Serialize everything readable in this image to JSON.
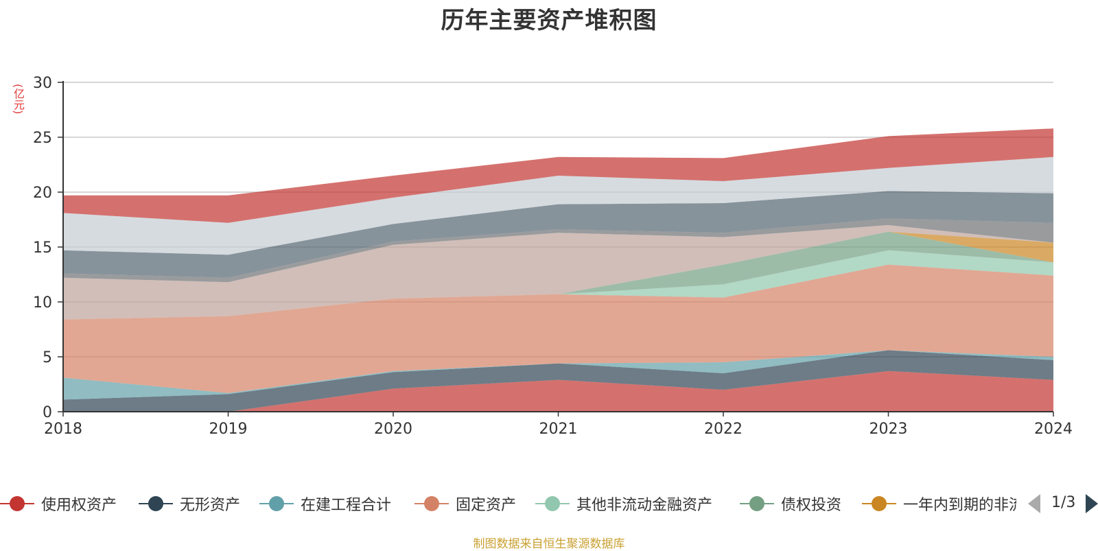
{
  "chart_data": {
    "type": "area",
    "stacked": true,
    "title": "历年主要资产堆积图",
    "unit_label": "(亿元)",
    "source": "制图数据来自恒生聚源数据库",
    "x": [
      "2018",
      "2019",
      "2020",
      "2021",
      "2022",
      "2023",
      "2024"
    ],
    "ylim": [
      0,
      30
    ],
    "yticks": [
      0,
      5,
      10,
      15,
      20,
      25,
      30
    ],
    "grid": true,
    "legend_position": "bottom",
    "legend_page": "1/3",
    "series": [
      {
        "name": "使用权资产",
        "color": "#c23531",
        "values": [
          0,
          0,
          2.1,
          2.9,
          2.0,
          3.7,
          2.9
        ]
      },
      {
        "name": "无形资产",
        "color": "#2f4554",
        "values": [
          1.1,
          1.6,
          1.5,
          1.5,
          1.5,
          1.9,
          1.8
        ]
      },
      {
        "name": "在建工程合计",
        "color": "#61a0a8",
        "values": [
          2.0,
          0.1,
          0.1,
          0,
          1.0,
          0,
          0.3
        ]
      },
      {
        "name": "固定资产",
        "color": "#d48265",
        "values": [
          5.3,
          7.0,
          6.6,
          6.3,
          5.9,
          7.8,
          7.4
        ]
      },
      {
        "name": "其他非流动金融资产",
        "color": "#91c7ae",
        "values": [
          0,
          0,
          0,
          0,
          1.2,
          1.3,
          1.2
        ]
      },
      {
        "name": "债权投资",
        "color": "#749f83",
        "values": [
          0,
          0,
          0,
          0,
          1.8,
          1.7,
          0
        ]
      },
      {
        "name": "一年内到期的非流动资产",
        "color": "#ca8622",
        "values": [
          0,
          0,
          0,
          0,
          0,
          0,
          1.8
        ]
      },
      {
        "name": "",
        "color": "#bda29a",
        "values": [
          3.8,
          3.1,
          4.9,
          5.6,
          2.5,
          0.6,
          0
        ]
      },
      {
        "name": "",
        "color": "#6e7074",
        "values": [
          0.4,
          0.4,
          0.3,
          0.3,
          0.4,
          0.6,
          1.8
        ]
      },
      {
        "name": "",
        "color": "#546570",
        "values": [
          2.1,
          2.1,
          1.6,
          2.3,
          2.7,
          2.5,
          2.7
        ]
      },
      {
        "name": "",
        "color": "#c4ccd3",
        "values": [
          3.4,
          2.9,
          2.4,
          2.6,
          2.0,
          2.1,
          3.3
        ]
      },
      {
        "name": "",
        "color": "#c23531",
        "values": [
          1.6,
          2.5,
          2.0,
          1.7,
          2.1,
          2.9,
          2.6
        ]
      }
    ]
  }
}
